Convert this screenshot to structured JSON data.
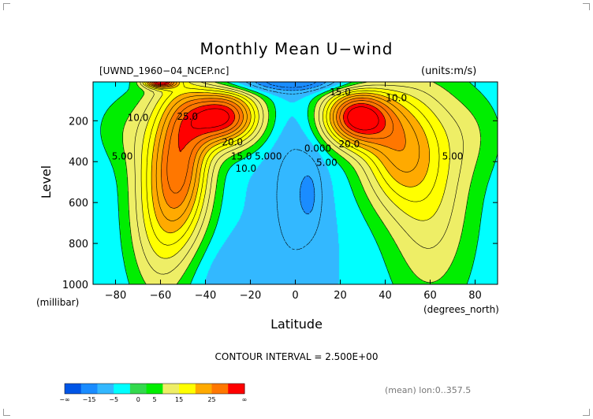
{
  "chart_data": {
    "type": "contour",
    "title": "Monthly Mean U−wind",
    "file_label": "[UWND_1960−04_NCEP.nc]",
    "units_label": "(units:m/s)",
    "ylabel": "Level",
    "yunit": "(millibar)",
    "xlabel": "Latitude",
    "xunit": "(degrees_north)",
    "x_ticks": [
      "−80",
      "−60",
      "−40",
      "−20",
      "0",
      "20",
      "40",
      "60",
      "80"
    ],
    "x_tick_values": [
      -80,
      -60,
      -40,
      -20,
      0,
      20,
      40,
      60,
      80
    ],
    "y_ticks": [
      "200",
      "400",
      "600",
      "800",
      "1000"
    ],
    "y_tick_values": [
      200,
      400,
      600,
      800,
      1000
    ],
    "xlim": [
      -90,
      90
    ],
    "ylim": [
      1000,
      10
    ],
    "contour_interval_text": "CONTOUR INTERVAL = 2.500E+00",
    "contour_labels": [
      {
        "text": "10.0",
        "lat": -70,
        "lev": 200
      },
      {
        "text": "5.00",
        "lat": -77,
        "lev": 390
      },
      {
        "text": "25.0",
        "lat": -48,
        "lev": 195
      },
      {
        "text": "20.0",
        "lat": -28,
        "lev": 320
      },
      {
        "text": "15.0",
        "lat": -24,
        "lev": 390
      },
      {
        "text": "10.0",
        "lat": -22,
        "lev": 450
      },
      {
        "text": "5.000",
        "lat": -12,
        "lev": 390
      },
      {
        "text": "0.000",
        "lat": 10,
        "lev": 350
      },
      {
        "text": "5.00",
        "lat": 14,
        "lev": 420
      },
      {
        "text": "15.0",
        "lat": 20,
        "lev": 75
      },
      {
        "text": "10.0",
        "lat": 45,
        "lev": 105
      },
      {
        "text": "20.0",
        "lat": 24,
        "lev": 330
      },
      {
        "text": "5.00",
        "lat": 70,
        "lev": 390
      }
    ],
    "colorbar": {
      "colors": [
        "#0055e6",
        "#1a8cff",
        "#33b8ff",
        "#00ffff",
        "#33d94d",
        "#00ee00",
        "#eeee66",
        "#ffff00",
        "#ffaa00",
        "#ff7700",
        "#ff0000"
      ],
      "labels": [
        "−∞",
        "−15",
        "−5",
        "0",
        "5",
        "15",
        "25",
        "∞"
      ]
    },
    "footer": "(mean) lon:0..357.5"
  }
}
